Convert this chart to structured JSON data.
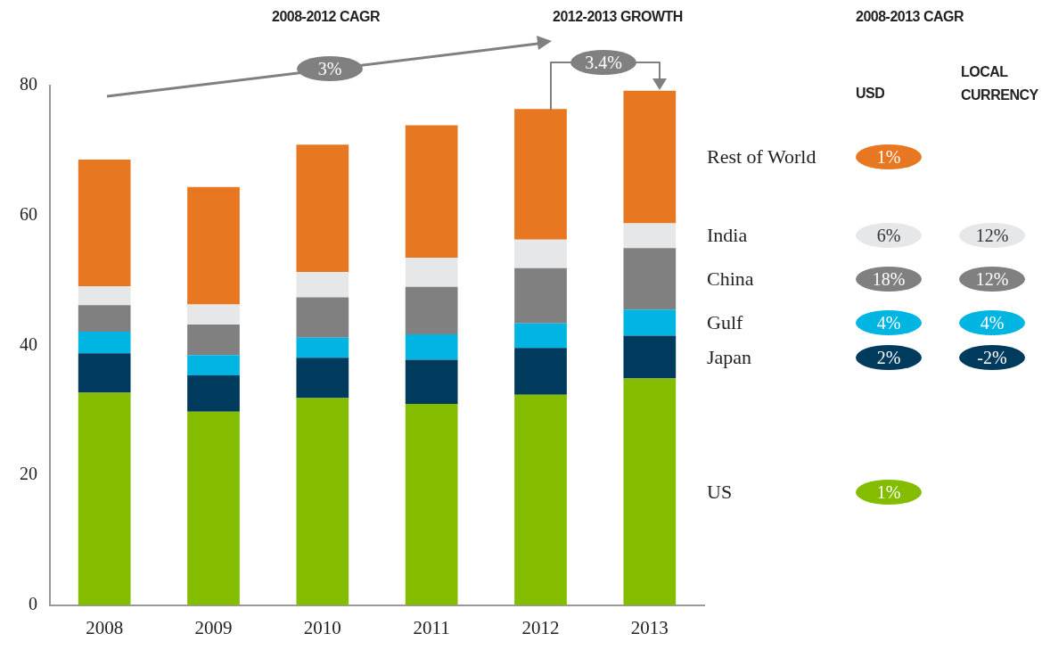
{
  "chart_data": {
    "type": "bar",
    "stacked": true,
    "categories": [
      "2008",
      "2009",
      "2010",
      "2011",
      "2012",
      "2013"
    ],
    "series": [
      {
        "name": "US",
        "color": "#84bd00",
        "values": [
          32.7,
          29.8,
          31.9,
          31.0,
          32.4,
          34.9
        ]
      },
      {
        "name": "Japan",
        "color": "#003a5d",
        "values": [
          6.1,
          5.6,
          6.2,
          6.8,
          7.2,
          6.6
        ]
      },
      {
        "name": "Gulf",
        "color": "#00b5e2",
        "values": [
          3.3,
          3.1,
          3.1,
          3.9,
          3.8,
          4.0
        ]
      },
      {
        "name": "China",
        "color": "#808080",
        "values": [
          4.1,
          4.7,
          6.2,
          7.3,
          8.5,
          9.5
        ]
      },
      {
        "name": "India",
        "color": "#e6e7e8",
        "values": [
          2.9,
          3.1,
          3.9,
          4.5,
          4.4,
          3.8
        ]
      },
      {
        "name": "Rest of World",
        "color": "#e87722",
        "values": [
          19.5,
          18.1,
          19.6,
          20.4,
          20.1,
          20.4
        ]
      }
    ],
    "ylim": [
      0,
      80
    ],
    "yticks": [
      0,
      20,
      40,
      60,
      80
    ],
    "grid": false,
    "legend": "right",
    "annotations": [
      "2008-2012 CAGR",
      "3%",
      "2012-2013 GROWTH",
      "3.4%",
      "2008-2013 CAGR",
      "USD",
      "LOCAL CURRENCY",
      "1%",
      null,
      "2%",
      "-2%",
      "4%",
      "4%",
      "18%",
      "12%",
      "6%",
      "12%",
      "1%",
      null
    ]
  }
}
